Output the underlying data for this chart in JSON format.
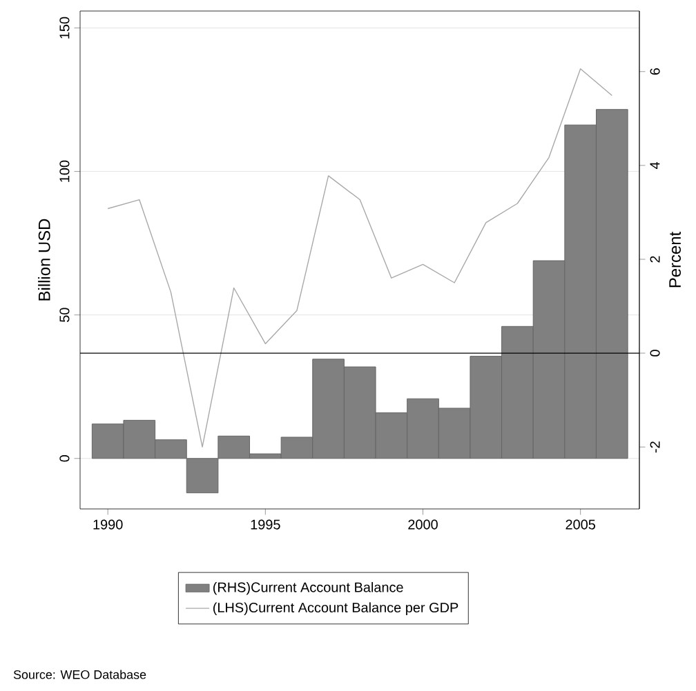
{
  "chart_data": {
    "type": "bar",
    "x": [
      1990,
      1991,
      1992,
      1993,
      1994,
      1995,
      1996,
      1997,
      1998,
      1999,
      2000,
      2001,
      2002,
      2003,
      2004,
      2005,
      2006
    ],
    "series": [
      {
        "name": "(RHS)Current Account Balance",
        "color": "#808080",
        "values": [
          12.0,
          13.3,
          6.5,
          -12.0,
          7.8,
          1.6,
          7.4,
          34.6,
          31.9,
          15.9,
          20.8,
          17.5,
          35.6,
          46.0,
          68.9,
          116.2,
          121.6
        ]
      },
      {
        "name": "(LHS)Current Account Balance per GDP",
        "type": "line",
        "axis": "y2",
        "color": "#a8a8a8",
        "values": [
          3.08,
          3.27,
          1.3,
          -2.0,
          1.39,
          0.2,
          0.91,
          3.78,
          3.27,
          1.6,
          1.89,
          1.5,
          2.78,
          3.19,
          4.17,
          6.06,
          5.49
        ]
      }
    ],
    "xlim": [
      1989.12,
      2006.87
    ],
    "xticks": [
      1990,
      1995,
      2000,
      2005
    ],
    "ylim": [
      -17.6,
      155.9
    ],
    "yticks": [
      0,
      50,
      100,
      150
    ],
    "y2lim": [
      -3.32,
      7.29
    ],
    "y2ticks": [
      -2,
      0,
      2,
      4,
      6
    ],
    "ylabel": "Billion USD",
    "y2label": "Percent",
    "grid": "y",
    "legend": "bottom",
    "ref_lines": [
      {
        "axis": "y2",
        "value": 0,
        "color": "#000000"
      }
    ],
    "annotations": [
      "Source: WEO Database"
    ]
  }
}
